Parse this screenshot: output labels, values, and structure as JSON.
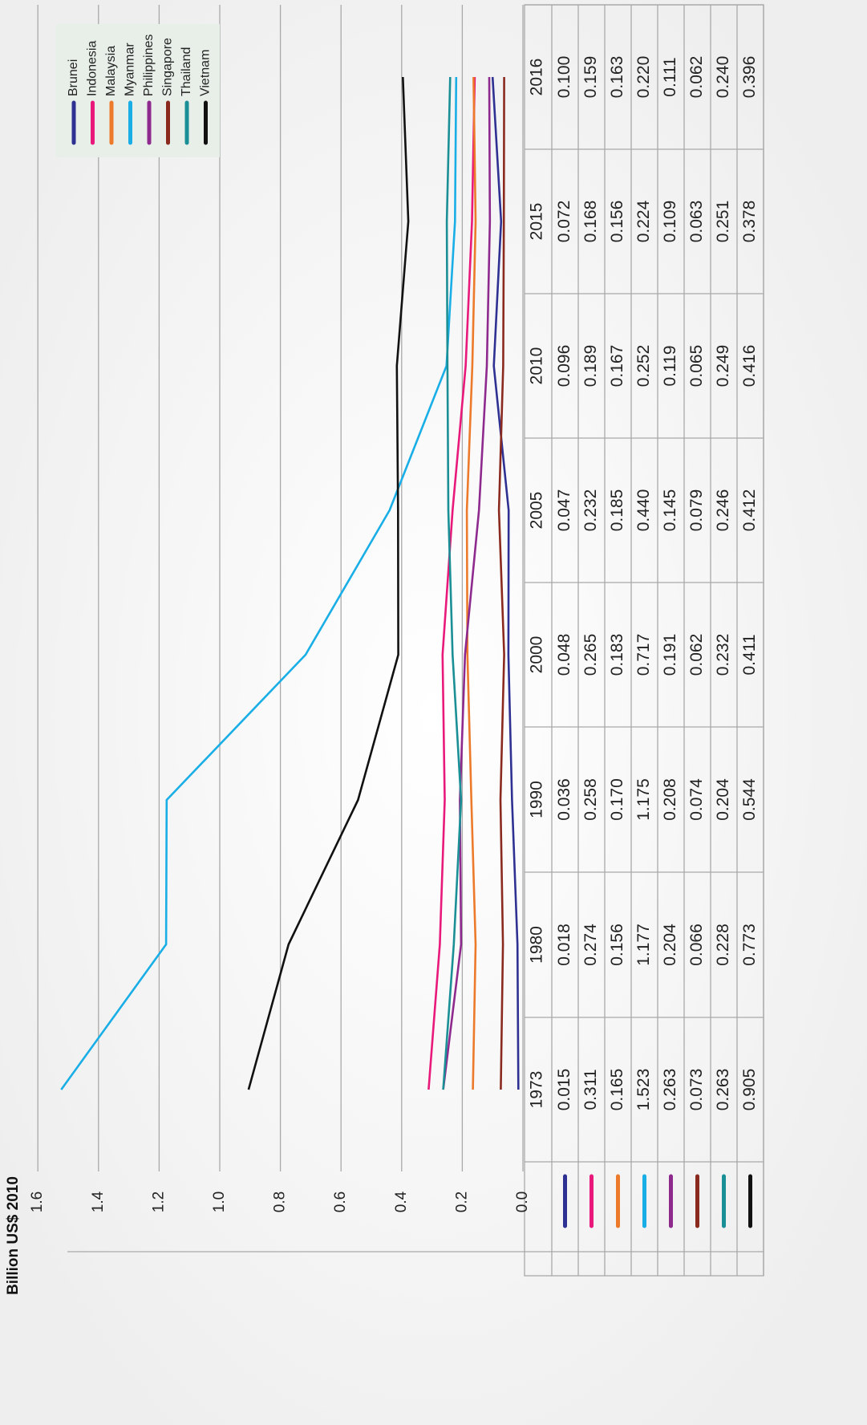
{
  "chart_data": {
    "type": "line",
    "orientation": "rotated-90-ccw",
    "title": "",
    "ylabel": "Billion US$ 2010",
    "xlabel": "",
    "ylim": [
      0,
      1.6
    ],
    "yticks": [
      "0.0",
      "0.2",
      "0.4",
      "0.6",
      "0.8",
      "1.0",
      "1.2",
      "1.4",
      "1.6"
    ],
    "grid": true,
    "legend_position": "top-right",
    "x": [
      "1973",
      "1980",
      "1990",
      "2000",
      "2005",
      "2010",
      "2015",
      "2016"
    ],
    "series": [
      {
        "name": "Brunei",
        "color": "#2e3192",
        "values": [
          0.015,
          0.018,
          0.036,
          0.048,
          0.047,
          0.096,
          0.072,
          0.1
        ]
      },
      {
        "name": "Indonesia",
        "color": "#e8197a",
        "values": [
          0.311,
          0.274,
          0.258,
          0.265,
          0.232,
          0.189,
          0.168,
          0.159
        ]
      },
      {
        "name": "Malaysia",
        "color": "#ec7a2a",
        "values": [
          0.165,
          0.156,
          0.17,
          0.183,
          0.185,
          0.167,
          0.156,
          0.163
        ]
      },
      {
        "name": "Myanmar",
        "color": "#19aee6",
        "values": [
          1.523,
          1.177,
          1.175,
          0.717,
          0.44,
          0.252,
          0.224,
          0.22
        ]
      },
      {
        "name": "Philippines",
        "color": "#8e2a8e",
        "values": [
          0.263,
          0.204,
          0.208,
          0.191,
          0.145,
          0.119,
          0.109,
          0.111
        ]
      },
      {
        "name": "Singapore",
        "color": "#8a2a1f",
        "values": [
          0.073,
          0.066,
          0.074,
          0.062,
          0.079,
          0.065,
          0.063,
          0.062
        ]
      },
      {
        "name": "Thailand",
        "color": "#1a8f95",
        "values": [
          0.263,
          0.228,
          0.204,
          0.232,
          0.246,
          0.249,
          0.251,
          0.24
        ]
      },
      {
        "name": "Vietnam",
        "color": "#111111",
        "values": [
          0.905,
          0.773,
          0.544,
          0.411,
          0.412,
          0.416,
          0.378,
          0.396
        ]
      }
    ],
    "table": {
      "rows": [
        [
          "0.015",
          "0.018",
          "0.036",
          "0.048",
          "0.047",
          "0.096",
          "0.072",
          "0.100"
        ],
        [
          "0.311",
          "0.274",
          "0.258",
          "0.265",
          "0.232",
          "0.189",
          "0.168",
          "0.159"
        ],
        [
          "0.165",
          "0.156",
          "0.170",
          "0.183",
          "0.185",
          "0.167",
          "0.156",
          "0.163"
        ],
        [
          "1.523",
          "1.177",
          "1.175",
          "0.717",
          "0.440",
          "0.252",
          "0.224",
          "0.220"
        ],
        [
          "0.263",
          "0.204",
          "0.208",
          "0.191",
          "0.145",
          "0.119",
          "0.109",
          "0.111"
        ],
        [
          "0.073",
          "0.066",
          "0.074",
          "0.062",
          "0.079",
          "0.065",
          "0.063",
          "0.062"
        ],
        [
          "0.263",
          "0.228",
          "0.204",
          "0.232",
          "0.246",
          "0.249",
          "0.251",
          "0.240"
        ],
        [
          "0.905",
          "0.773",
          "0.544",
          "0.411",
          "0.412",
          "0.416",
          "0.378",
          "0.396"
        ]
      ]
    }
  }
}
